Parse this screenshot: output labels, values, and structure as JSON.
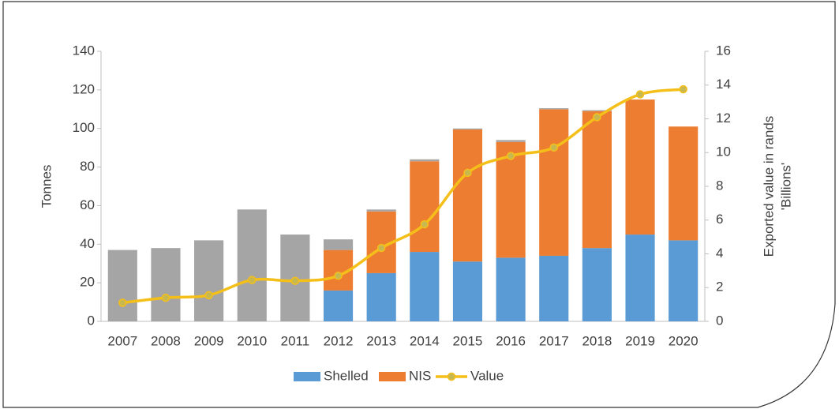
{
  "chart_data": {
    "type": "bar",
    "categories": [
      "2007",
      "2008",
      "2009",
      "2010",
      "2011",
      "2012",
      "2013",
      "2014",
      "2015",
      "2016",
      "2017",
      "2018",
      "2019",
      "2020"
    ],
    "series": [
      {
        "name": "Shelled",
        "color": "#5b9bd5",
        "values": [
          null,
          null,
          null,
          null,
          null,
          16,
          25,
          36,
          31,
          33,
          34,
          38,
          45,
          42
        ]
      },
      {
        "name": "NIS",
        "color": "#ed7d31",
        "values": [
          null,
          null,
          null,
          null,
          null,
          21,
          32,
          47,
          68.5,
          60,
          76,
          71,
          70,
          59
        ]
      },
      {
        "color": "#a5a5a5",
        "values": [
          37,
          38,
          42,
          58,
          45,
          5.5,
          1,
          1,
          0.5,
          1,
          0.5,
          0.5,
          0,
          0
        ]
      },
      {
        "name": "Value",
        "color": "#f5bf1a",
        "type": "line",
        "axis": "y2",
        "values": [
          1.1,
          1.4,
          1.55,
          2.45,
          2.4,
          2.7,
          4.35,
          5.75,
          8.8,
          9.8,
          10.3,
          12.1,
          13.45,
          13.75
        ]
      }
    ],
    "stacked": true,
    "ylabel": "Tonnes",
    "y2label": [
      "Exported value in rands",
      "'Billions'"
    ],
    "ylim": [
      0,
      140
    ],
    "yticks": [
      0,
      20,
      40,
      60,
      80,
      100,
      120,
      140
    ],
    "y2lim": [
      0,
      16
    ],
    "y2ticks": [
      0,
      2,
      4,
      6,
      8,
      10,
      12,
      14,
      16
    ],
    "legend": "bottom"
  }
}
